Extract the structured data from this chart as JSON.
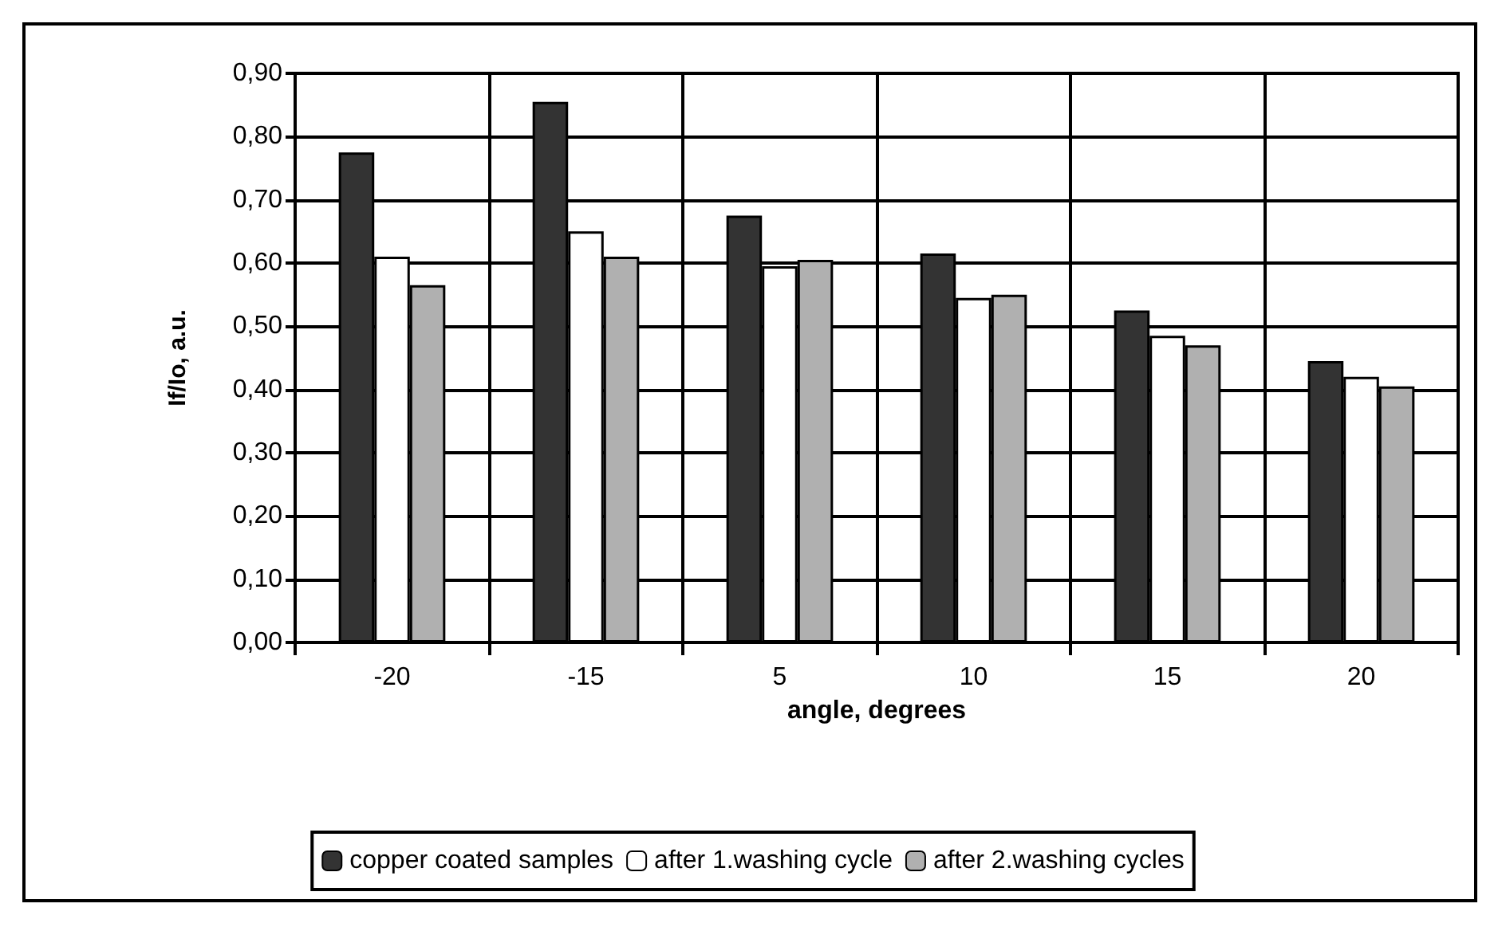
{
  "chart_data": {
    "type": "bar",
    "xlabel": "angle, degrees",
    "ylabel": "If/Io, a.u.",
    "categories": [
      "-20",
      "-15",
      "5",
      "10",
      "15",
      "20"
    ],
    "series": [
      {
        "name": "copper coated samples",
        "color": "#333333",
        "values": [
          0.775,
          0.855,
          0.675,
          0.615,
          0.525,
          0.445
        ]
      },
      {
        "name": "after 1.washing cycle",
        "color": "#ffffff",
        "values": [
          0.61,
          0.65,
          0.595,
          0.545,
          0.485,
          0.42
        ]
      },
      {
        "name": "after 2.washing cycles",
        "color": "#b0b0b0",
        "values": [
          0.565,
          0.61,
          0.605,
          0.55,
          0.47,
          0.405
        ]
      }
    ],
    "ylim": [
      0,
      0.9
    ],
    "yticks": [
      {
        "value": 0,
        "label": "0,00"
      },
      {
        "value": 0.1,
        "label": "0,10"
      },
      {
        "value": 0.2,
        "label": "0,20"
      },
      {
        "value": 0.3,
        "label": "0,30"
      },
      {
        "value": 0.4,
        "label": "0,40"
      },
      {
        "value": 0.5,
        "label": "0,50"
      },
      {
        "value": 0.6,
        "label": "0,60"
      },
      {
        "value": 0.7,
        "label": "0,70"
      },
      {
        "value": 0.8,
        "label": "0,80"
      },
      {
        "value": 0.9,
        "label": "0,90"
      }
    ],
    "grid": true,
    "legend": "bottom"
  }
}
